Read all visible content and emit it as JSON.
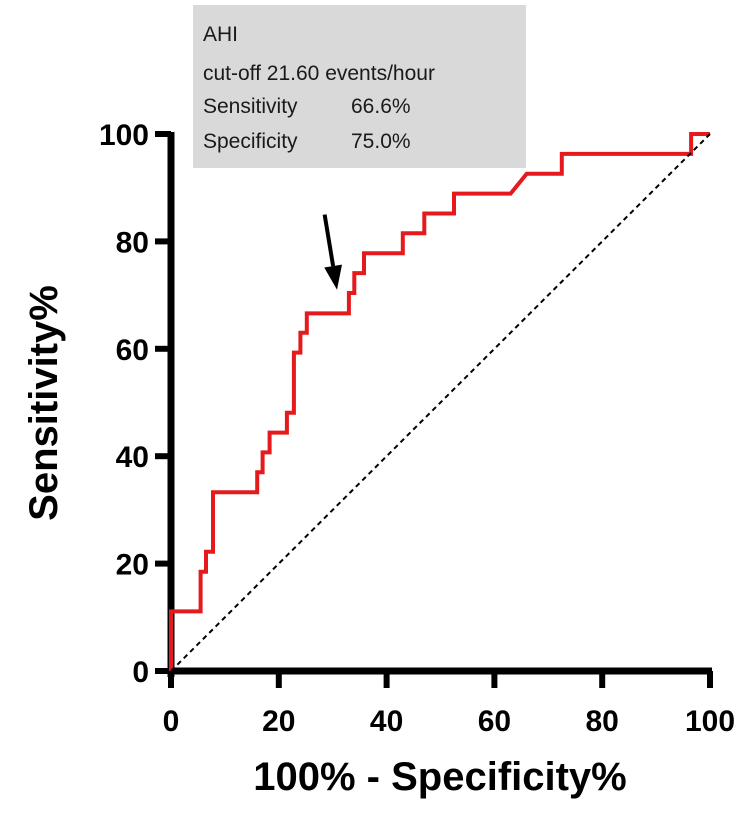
{
  "chart_data": {
    "type": "line",
    "title": "",
    "xlabel": "100% - Specificity%",
    "ylabel": "Sensitivity%",
    "xlim": [
      0,
      100
    ],
    "ylim": [
      0,
      100
    ],
    "x_ticks": [
      0,
      20,
      40,
      60,
      80,
      100
    ],
    "y_ticks": [
      0,
      20,
      40,
      60,
      80,
      100
    ],
    "x_tick_labels": [
      "0",
      "20",
      "40",
      "60",
      "80",
      "100"
    ],
    "y_tick_labels": [
      "0",
      "20",
      "40",
      "60",
      "80",
      "100"
    ],
    "grid": false,
    "series": [
      {
        "name": "ROC curve",
        "color": "#e41a1c",
        "style": "step",
        "points": [
          [
            0,
            0
          ],
          [
            0,
            11.1
          ],
          [
            5.5,
            11.1
          ],
          [
            5.5,
            18.5
          ],
          [
            6.5,
            18.5
          ],
          [
            6.5,
            22.2
          ],
          [
            7.8,
            22.2
          ],
          [
            7.8,
            33.3
          ],
          [
            16.0,
            33.3
          ],
          [
            16.0,
            37.0
          ],
          [
            17.0,
            37.0
          ],
          [
            17.0,
            40.7
          ],
          [
            18.3,
            40.7
          ],
          [
            18.3,
            44.4
          ],
          [
            21.5,
            44.4
          ],
          [
            21.5,
            48.1
          ],
          [
            22.8,
            48.1
          ],
          [
            22.8,
            59.3
          ],
          [
            24.0,
            59.3
          ],
          [
            24.0,
            63.0
          ],
          [
            25.2,
            63.0
          ],
          [
            25.2,
            66.6
          ],
          [
            33.0,
            66.6
          ],
          [
            33.0,
            70.4
          ],
          [
            34.0,
            70.4
          ],
          [
            34.0,
            74.1
          ],
          [
            35.8,
            74.1
          ],
          [
            35.8,
            77.8
          ],
          [
            43.0,
            77.8
          ],
          [
            43.0,
            81.5
          ],
          [
            47.0,
            81.5
          ],
          [
            47.0,
            85.2
          ],
          [
            52.5,
            85.2
          ],
          [
            52.5,
            88.9
          ],
          [
            63.0,
            88.9
          ],
          [
            66.0,
            92.6
          ],
          [
            72.5,
            92.6
          ],
          [
            72.5,
            96.3
          ],
          [
            96.5,
            96.3
          ],
          [
            96.5,
            100
          ],
          [
            100,
            100
          ]
        ]
      },
      {
        "name": "Reference line",
        "color": "#000000",
        "style": "dashed",
        "points": [
          [
            0,
            0
          ],
          [
            100,
            100
          ]
        ]
      }
    ],
    "annotations": [
      {
        "type": "arrow",
        "color": "#000000",
        "from": [
          28.5,
          85.0
        ],
        "to": [
          30.8,
          71.0
        ],
        "target_point": [
          30.8,
          66.6
        ]
      }
    ],
    "legend": {
      "position": "top-left",
      "background": "#d9d9d9",
      "lines": [
        {
          "label": "AHI",
          "value": ""
        },
        {
          "label": "cut-off 21.60 events/hour",
          "value": ""
        },
        {
          "label": "Sensitivity",
          "value": "66.6%"
        },
        {
          "label": "Specificity",
          "value": "75.0%"
        }
      ]
    }
  }
}
